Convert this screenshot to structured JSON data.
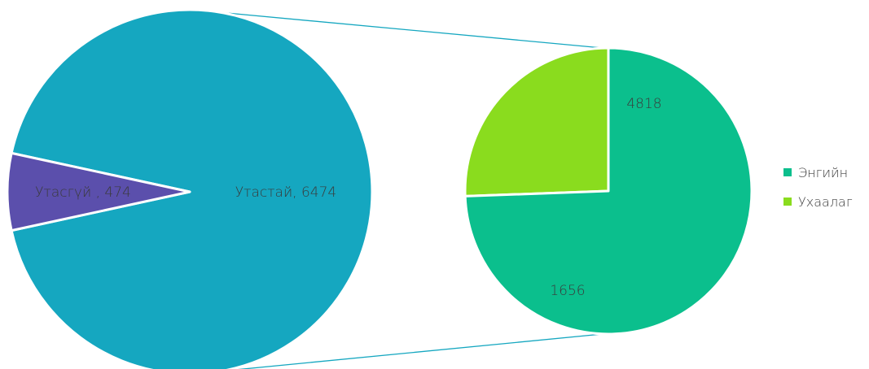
{
  "chart_data": {
    "type": "pie",
    "subtype": "pie-of-pie",
    "primary": {
      "slices": [
        {
          "name": "Утастай",
          "value": 6474,
          "label": "Утастай, 6474",
          "color": "#15a7c0"
        },
        {
          "name": "Утасгүй",
          "value": 474,
          "label": "Утасгүй , 474",
          "color": "#5b4fac"
        }
      ]
    },
    "secondary": {
      "breakdown_of": "Утастай",
      "slices": [
        {
          "name": "Энгийн",
          "value": 4818,
          "label": "4818",
          "color": "#0bbf8d"
        },
        {
          "name": "Ухаалаг",
          "value": 1656,
          "label": "1656",
          "color": "#8adc1e"
        }
      ]
    },
    "legend": {
      "position": "right",
      "entries": [
        {
          "label": "Энгийн",
          "color": "#0bbf8d"
        },
        {
          "label": "Ухаалаг",
          "color": "#8adc1e"
        }
      ]
    },
    "connector_color": "#15a7c0"
  }
}
